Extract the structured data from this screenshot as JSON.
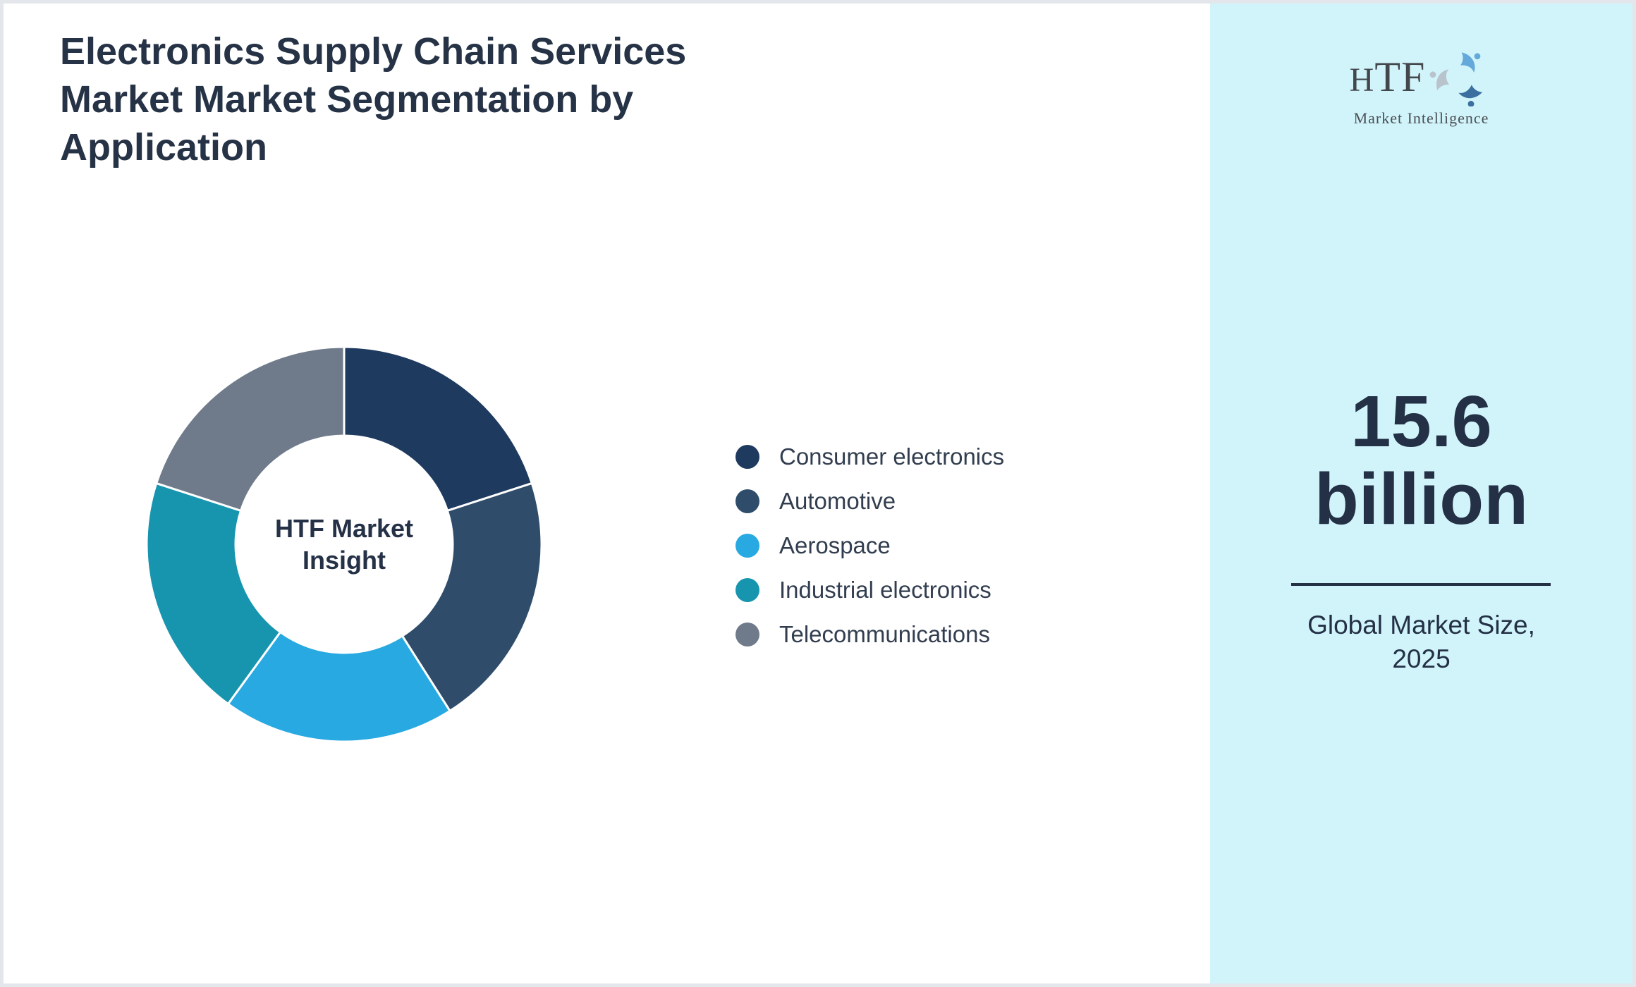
{
  "page": {
    "title": "Electronics Supply Chain Services Market Market Segmentation by Application"
  },
  "chart_data": {
    "type": "pie",
    "subtype": "donut",
    "title": "Electronics Supply Chain Services Market Market Segmentation by Application",
    "center_label": "HTF Market Insight",
    "categories": [
      "Consumer electronics",
      "Automotive",
      "Aerospace",
      "Industrial electronics",
      "Telecommunications"
    ],
    "series": [
      {
        "name": "Consumer electronics",
        "value": 20,
        "color": "#1e3a5f"
      },
      {
        "name": "Automotive",
        "value": 21,
        "color": "#2f4d6b"
      },
      {
        "name": "Aerospace",
        "value": 19,
        "color": "#28a9e1"
      },
      {
        "name": "Industrial electronics",
        "value": 20,
        "color": "#1795af"
      },
      {
        "name": "Telecommunications",
        "value": 20,
        "color": "#6f7b8a"
      }
    ],
    "values_unit": "percent-of-whole (estimated from segment angles; no numeric labels shown in chart)",
    "start_angle_deg": 0,
    "clockwise": true,
    "inner_radius_ratio": 0.55,
    "legend_position": "right",
    "slice_separator_color": "#ffffff"
  },
  "sidebar": {
    "logo": {
      "text": "HTF",
      "subtext": "Market Intelligence"
    },
    "market_size": {
      "value": "15.6",
      "unit": "billion",
      "caption_line1": "Global Market Size,",
      "caption_line2": "2025"
    },
    "background_color": "#d1f4fb"
  },
  "colors": {
    "page_border": "#e3e6ea",
    "content_background": "#ffffff",
    "title_text": "#263245",
    "legend_text": "#323e4f",
    "panel_background": "#d1f4fb",
    "panel_text": "#233045",
    "divider": "#233045"
  }
}
